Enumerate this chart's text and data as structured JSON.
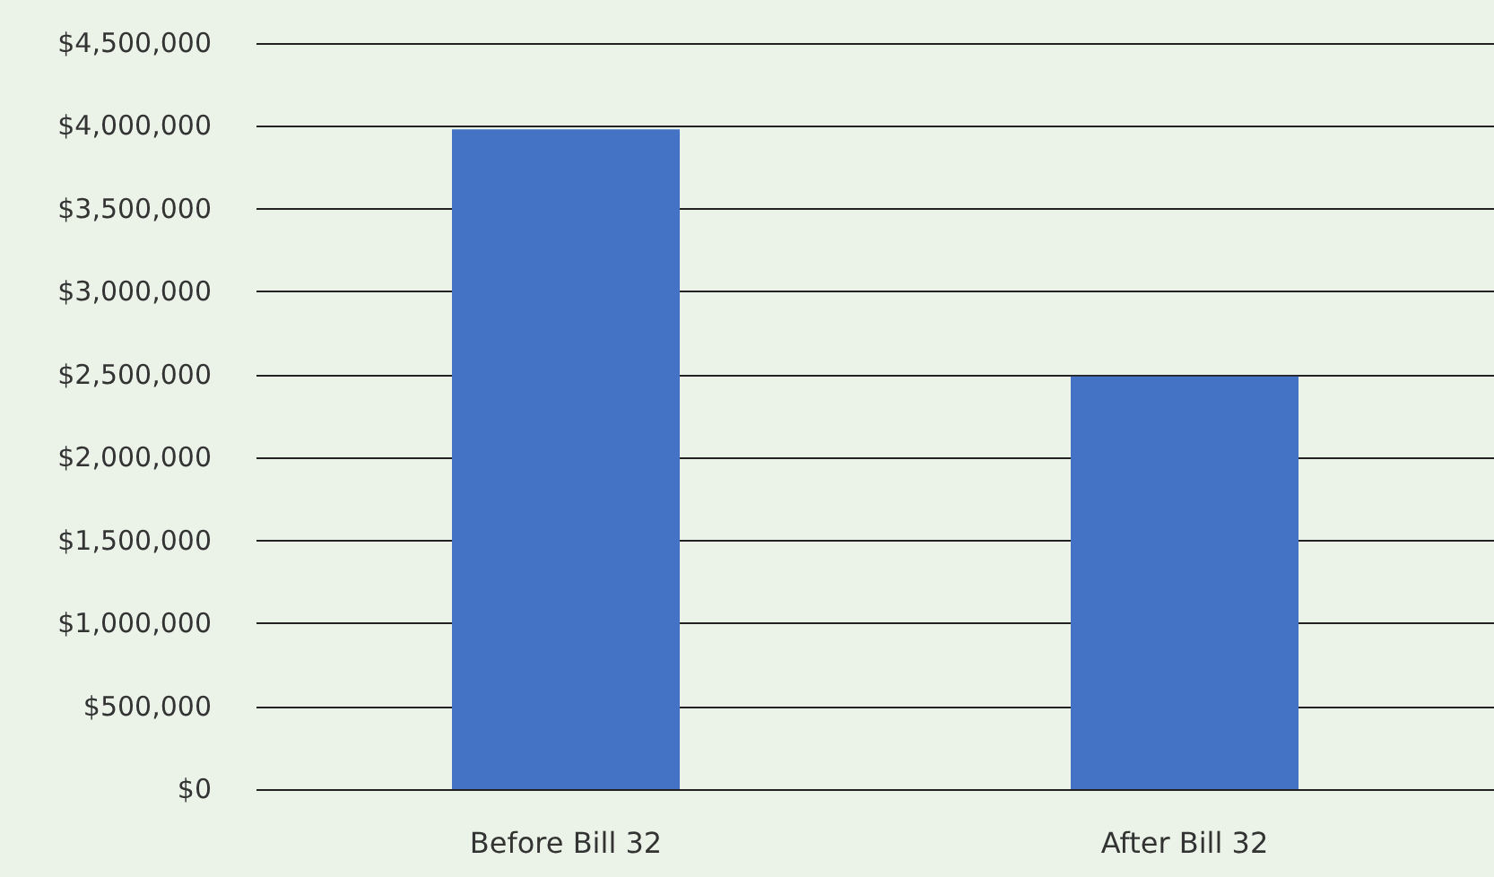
{
  "chart_data": {
    "type": "bar",
    "categories": [
      "Before Bill 32",
      "After Bill 32"
    ],
    "values": [
      3980000,
      2490000
    ],
    "color": "#4472c4",
    "ylim": [
      0,
      4500000
    ],
    "yticks": [
      {
        "value": 0,
        "label": "$0"
      },
      {
        "value": 500000,
        "label": "$500,000"
      },
      {
        "value": 1000000,
        "label": "$1,000,000"
      },
      {
        "value": 1500000,
        "label": "$1,500,000"
      },
      {
        "value": 2000000,
        "label": "$2,000,000"
      },
      {
        "value": 2500000,
        "label": "$2,500,000"
      },
      {
        "value": 3000000,
        "label": "$3,000,000"
      },
      {
        "value": 3500000,
        "label": "$3,500,000"
      },
      {
        "value": 4000000,
        "label": "$4,000,000"
      },
      {
        "value": 4500000,
        "label": "$4,500,000"
      }
    ],
    "grid": true
  }
}
